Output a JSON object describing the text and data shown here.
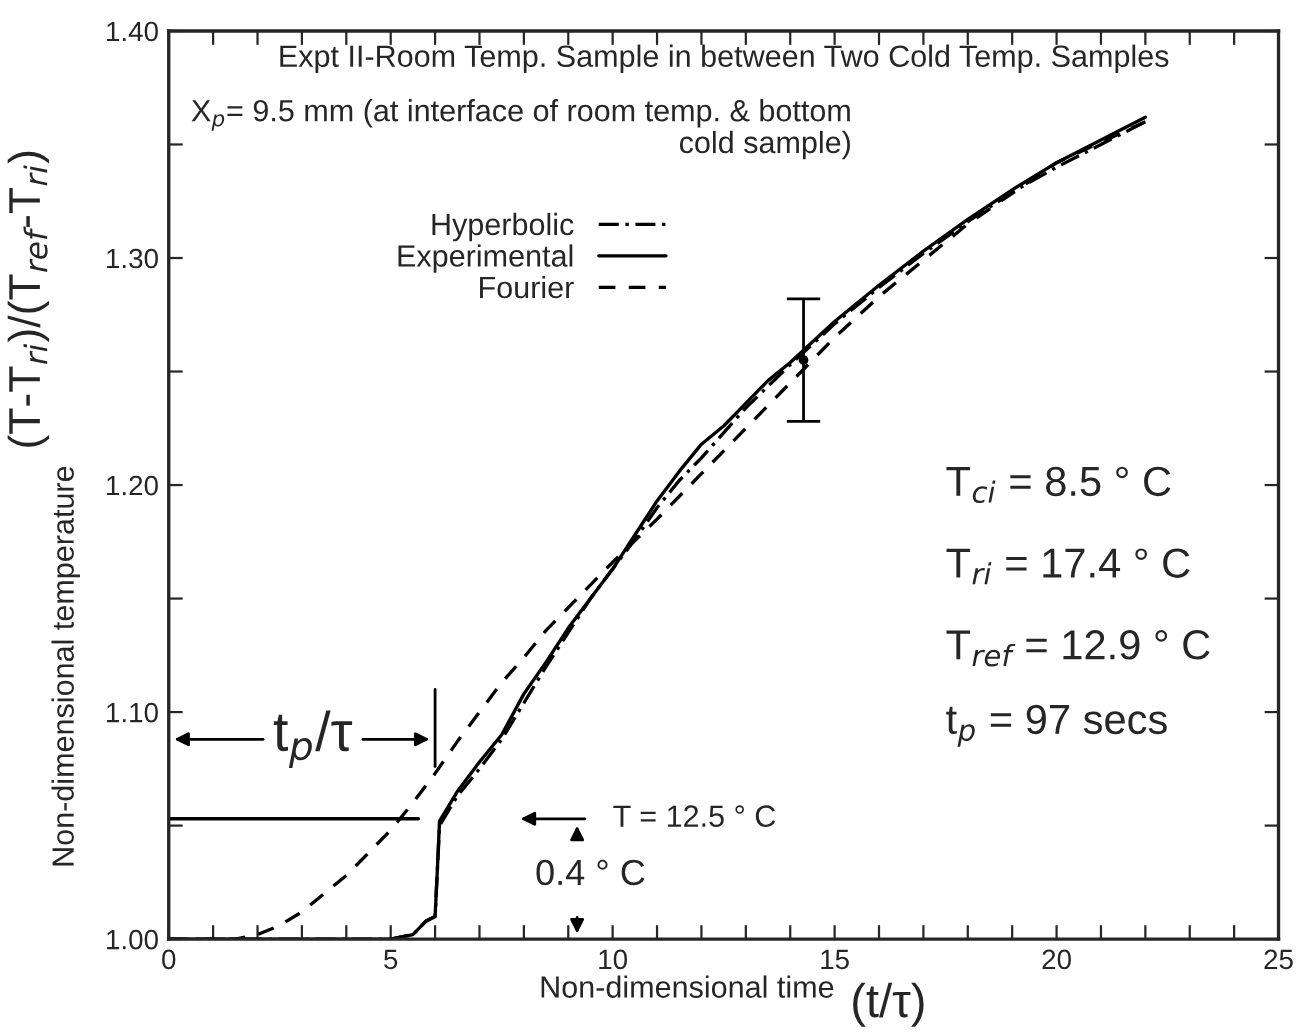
{
  "chart_data": {
    "type": "line",
    "xlabel": "Non-dimensional time",
    "ylabel": "Non-dimensional temperature",
    "xlim": [
      0,
      25
    ],
    "ylim": [
      1.0,
      1.4
    ],
    "xticks": [
      0,
      {
        "value": 1,
        "label": null
      },
      {
        "value": 2,
        "label": null
      },
      {
        "value": 3,
        "label": null
      },
      {
        "value": 4,
        "label": null
      },
      5,
      {
        "value": 6,
        "label": null
      },
      {
        "value": 7,
        "label": null
      },
      {
        "value": 8,
        "label": null
      },
      {
        "value": 9,
        "label": null
      },
      10,
      {
        "value": 11,
        "label": null
      },
      {
        "value": 12,
        "label": null
      },
      {
        "value": 13,
        "label": null
      },
      {
        "value": 14,
        "label": null
      },
      15,
      {
        "value": 16,
        "label": null
      },
      {
        "value": 17,
        "label": null
      },
      {
        "value": 18,
        "label": null
      },
      {
        "value": 19,
        "label": null
      },
      20,
      {
        "value": 21,
        "label": null
      },
      {
        "value": 22,
        "label": null
      },
      {
        "value": 23,
        "label": null
      },
      {
        "value": 24,
        "label": null
      },
      25
    ],
    "yticks": [
      {
        "value": 1.0,
        "label": "1.00"
      },
      {
        "value": 1.05,
        "label": null
      },
      {
        "value": 1.1,
        "label": "1.10"
      },
      {
        "value": 1.15,
        "label": null
      },
      {
        "value": 1.2,
        "label": "1.20"
      },
      {
        "value": 1.25,
        "label": null
      },
      {
        "value": 1.3,
        "label": "1.30"
      },
      {
        "value": 1.35,
        "label": null
      },
      {
        "value": 1.4,
        "label": "1.40"
      }
    ],
    "grid": false,
    "legend": "top left",
    "marker": "none",
    "series": [
      {
        "name": "Hyperbolic",
        "color": "#000000",
        "line_style": "dotted",
        "x": [
          0,
          5,
          5.5,
          5.8,
          6.0,
          6.1,
          6.5,
          7,
          7.5,
          8,
          8.5,
          9,
          9.5,
          10,
          10.5,
          11,
          11.5,
          12,
          12.5,
          13,
          14,
          15,
          16,
          17,
          18,
          19,
          20,
          21,
          22
        ],
        "values": [
          1.0,
          1.0,
          1.002,
          1.008,
          1.01,
          1.05,
          1.063,
          1.075,
          1.088,
          1.104,
          1.12,
          1.135,
          1.15,
          1.163,
          1.176,
          1.19,
          1.202,
          1.212,
          1.223,
          1.234,
          1.253,
          1.271,
          1.287,
          1.302,
          1.316,
          1.329,
          1.34,
          1.35,
          1.36
        ]
      },
      {
        "name": "Experimental",
        "color": "#000000",
        "line_style": "solid",
        "x": [
          0,
          1,
          2,
          3,
          4,
          5,
          5.5,
          5.8,
          6.0,
          6.05,
          6.1,
          6.5,
          7,
          7.5,
          8,
          8.5,
          9,
          9.5,
          10,
          10.5,
          11,
          11.5,
          12,
          12.5,
          13,
          13.5,
          14,
          14.5,
          15,
          16,
          17,
          18,
          19,
          20,
          21,
          22
        ],
        "values": [
          1.0,
          1.0,
          1.0,
          1.0,
          1.0,
          1.0,
          1.002,
          1.008,
          1.01,
          1.03,
          1.052,
          1.065,
          1.078,
          1.09,
          1.108,
          1.122,
          1.137,
          1.15,
          1.163,
          1.178,
          1.193,
          1.206,
          1.218,
          1.226,
          1.236,
          1.246,
          1.254,
          1.263,
          1.272,
          1.288,
          1.303,
          1.317,
          1.33,
          1.342,
          1.352,
          1.362
        ]
      },
      {
        "name": "Fourier",
        "color": "#000000",
        "line_style": "dashed",
        "x": [
          0,
          1,
          1.5,
          2,
          2.5,
          3,
          3.5,
          4,
          4.5,
          5,
          5.5,
          6,
          6.5,
          7,
          7.5,
          8,
          8.5,
          9,
          10,
          11,
          12,
          13,
          14,
          15,
          16,
          18,
          20,
          22
        ],
        "values": [
          1.0,
          1.0,
          1.0,
          1.002,
          1.006,
          1.012,
          1.02,
          1.028,
          1.038,
          1.048,
          1.06,
          1.073,
          1.087,
          1.1,
          1.113,
          1.124,
          1.136,
          1.146,
          1.166,
          1.185,
          1.205,
          1.225,
          1.245,
          1.265,
          1.283,
          1.315,
          1.342,
          1.36
        ]
      },
      {
        "type": "scatter",
        "color": "#000000",
        "marker": "circle",
        "x": [
          14.3
        ],
        "values": [
          1.255
        ],
        "errors": [
          0.027
        ]
      }
    ],
    "ref_lines": [
      {
        "axis": "y",
        "value": 1.053,
        "color": "#000000"
      }
    ],
    "annotations": [
      "(T-T$_{ri}$)/(T$_{ref}$-T$_{ri}$)",
      "(t/τ)",
      "Expt II-Room Temp. Sample in between Two Cold Temp. Samples",
      "X$_{p}$= 9.5 mm (at interface of room temp. & bottom\ncold sample)",
      "T$_{ci}$ = 8.5 ° C",
      "T$_{ri}$ = 17.4 ° C",
      "T$_{ref}$ = 12.9 ° C",
      "t$_{p}$ = 97 secs",
      "t$_{p}$/τ",
      "T = 12.5 ° C",
      "0.4 ° C"
    ]
  }
}
